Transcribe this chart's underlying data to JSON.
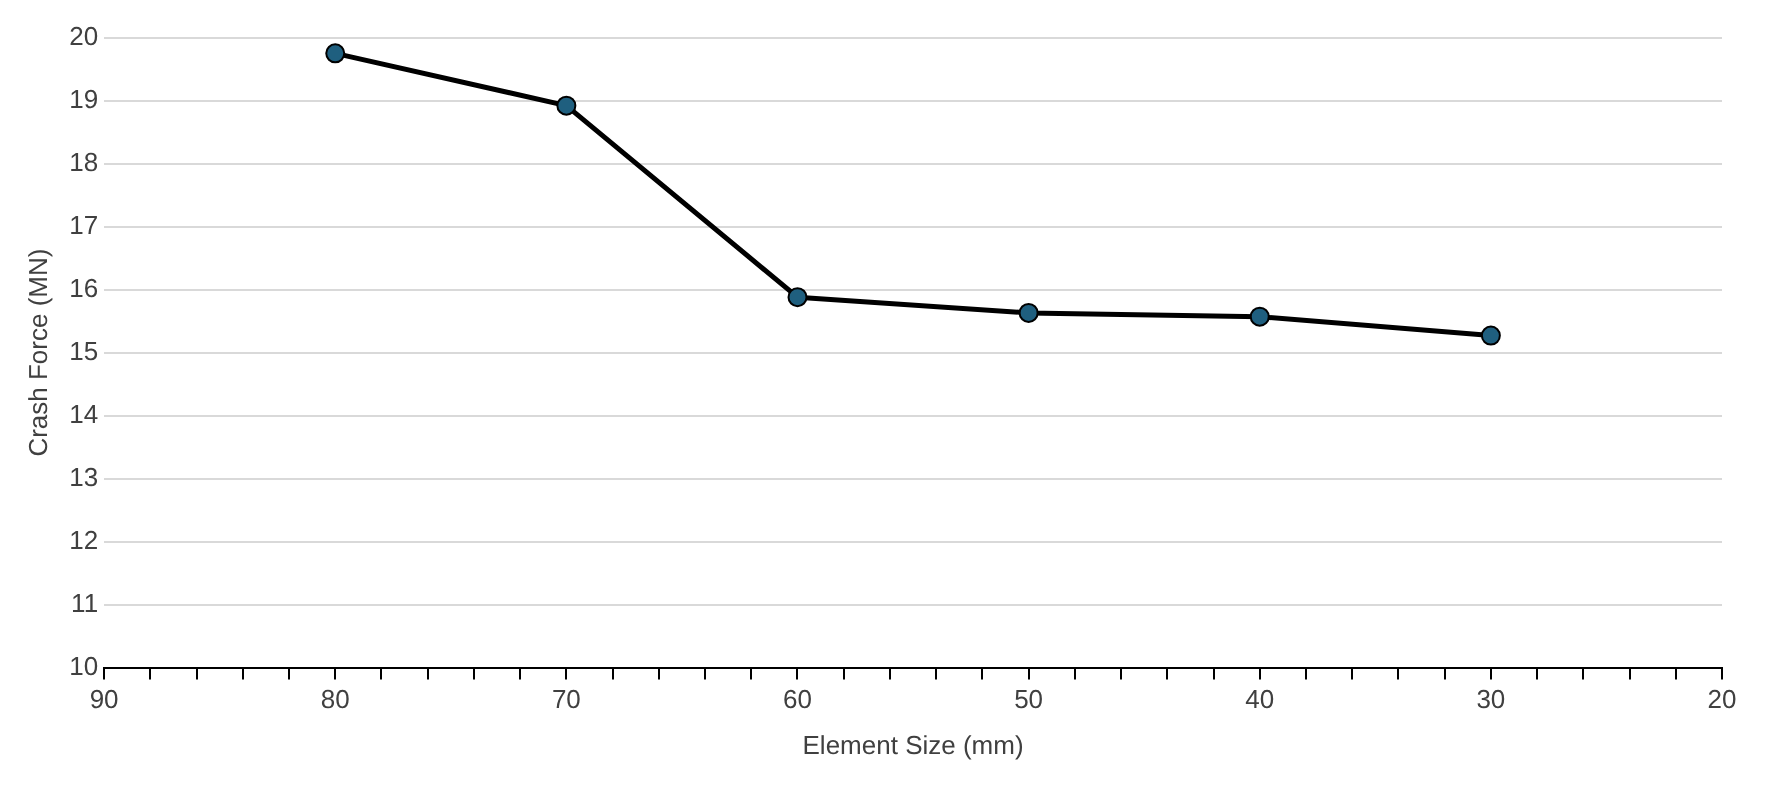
{
  "chart_data": {
    "type": "line",
    "xlabel": "Element Size (mm)",
    "ylabel": "Crash Force (MN)",
    "x": [
      80,
      70,
      60,
      50,
      40,
      30
    ],
    "series": [
      {
        "color": "#000000",
        "values": [
          19.75,
          18.92,
          15.88,
          15.63,
          15.57,
          15.27
        ]
      }
    ],
    "xlim": [
      90,
      20
    ],
    "xticks": [
      90,
      {
        "value": 88,
        "label": null
      },
      {
        "value": 86,
        "label": null
      },
      {
        "value": 84,
        "label": null
      },
      {
        "value": 82,
        "label": null
      },
      80,
      {
        "value": 78,
        "label": null
      },
      {
        "value": 76,
        "label": null
      },
      {
        "value": 74,
        "label": null
      },
      {
        "value": 72,
        "label": null
      },
      70,
      {
        "value": 68,
        "label": null
      },
      {
        "value": 66,
        "label": null
      },
      {
        "value": 64,
        "label": null
      },
      {
        "value": 62,
        "label": null
      },
      60,
      {
        "value": 58,
        "label": null
      },
      {
        "value": 56,
        "label": null
      },
      {
        "value": 54,
        "label": null
      },
      {
        "value": 52,
        "label": null
      },
      50,
      {
        "value": 48,
        "label": null
      },
      {
        "value": 46,
        "label": null
      },
      {
        "value": 44,
        "label": null
      },
      {
        "value": 42,
        "label": null
      },
      40,
      {
        "value": 38,
        "label": null
      },
      {
        "value": 36,
        "label": null
      },
      {
        "value": 34,
        "label": null
      },
      {
        "value": 32,
        "label": null
      },
      30,
      {
        "value": 28,
        "label": null
      },
      {
        "value": 26,
        "label": null
      },
      {
        "value": 24,
        "label": null
      },
      {
        "value": 22,
        "label": null
      },
      20
    ],
    "ylim": [
      10,
      20
    ],
    "yticks": [
      10,
      11,
      12,
      13,
      14,
      15,
      16,
      17,
      18,
      19,
      20
    ],
    "grid": "y",
    "marker": "circle",
    "line_style": "solid",
    "legend": false
  }
}
